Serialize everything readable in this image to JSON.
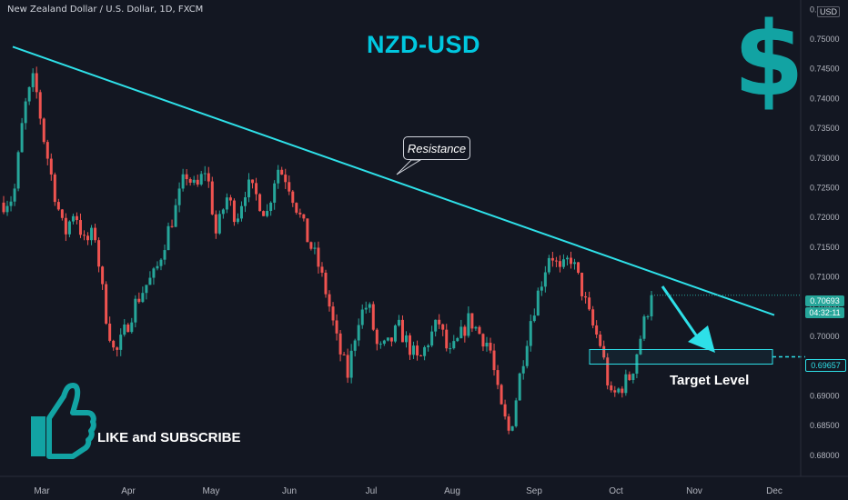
{
  "header": {
    "symbol_line": "New Zealand Dollar / U.S. Dollar, 1D, FXCM",
    "currency_badge": "USD"
  },
  "title": "NZD-USD",
  "dollar_glyph": "$",
  "annotations": {
    "resistance_label": "Resistance",
    "target_label": "Target Level",
    "cta_label": "LIKE and SUBSCRIBE"
  },
  "price_tags": {
    "current_price": "0.70693",
    "countdown": "04:32:11",
    "target_price": "0.69657"
  },
  "icons": [
    "thumbs-up-icon",
    "dollar-icon",
    "arrow-down-icon"
  ],
  "colors": {
    "background": "#131722",
    "bull": "#26a69a",
    "bear": "#ef5350",
    "trendline": "#2ee0e8",
    "title": "#00c8e0",
    "dollar": "#12a3a3"
  },
  "chart_data": {
    "type": "candlestick",
    "title": "NZD-USD",
    "timeframe": "1D",
    "x_ticks": [
      "Mar",
      "Apr",
      "May",
      "Jun",
      "Jul",
      "Aug",
      "Sep",
      "Oct",
      "Nov",
      "Dec"
    ],
    "y_ticks": [
      "0.75500",
      "0.75000",
      "0.74500",
      "0.74000",
      "0.73500",
      "0.73000",
      "0.72500",
      "0.72000",
      "0.71500",
      "0.71000",
      "0.70500",
      "0.70000",
      "0.69500",
      "0.69000",
      "0.68500",
      "0.68000"
    ],
    "ylim": [
      0.678,
      0.7555
    ],
    "resistance_line": {
      "start": [
        "Feb 20",
        0.7487
      ],
      "end": [
        "Nov 28",
        0.7036
      ]
    },
    "target_level": 0.69657,
    "last_price": 0.70693,
    "price_path_closes": [
      0.7225,
      0.7235,
      0.738,
      0.7435,
      0.733,
      0.7245,
      0.717,
      0.7215,
      0.7155,
      0.7175,
      0.7045,
      0.6965,
      0.701,
      0.7055,
      0.7085,
      0.7105,
      0.7165,
      0.7215,
      0.7275,
      0.7245,
      0.7285,
      0.717,
      0.7235,
      0.72,
      0.7255,
      0.7235,
      0.7205,
      0.7285,
      0.7265,
      0.7215,
      0.7165,
      0.7125,
      0.7065,
      0.6985,
      0.6935,
      0.703,
      0.7055,
      0.6975,
      0.6985,
      0.7015,
      0.6985,
      0.6955,
      0.6995,
      0.7025,
      0.6965,
      0.6995,
      0.703,
      0.7005,
      0.6985,
      0.6885,
      0.6835,
      0.6935,
      0.7025,
      0.7085,
      0.7145,
      0.7105,
      0.7135,
      0.7085,
      0.7025,
      0.6985,
      0.6895,
      0.6915,
      0.6935,
      0.7005,
      0.7069
    ],
    "path_ranges": [
      5,
      3,
      3,
      4,
      5,
      5,
      4,
      4,
      5,
      5,
      5,
      4,
      3,
      4,
      4,
      4,
      4,
      4,
      4,
      3,
      4,
      4,
      4,
      4,
      4,
      4,
      4,
      4,
      4,
      4,
      4,
      4,
      4,
      4,
      4,
      4,
      4,
      4,
      4,
      4,
      4,
      4,
      4,
      4,
      4,
      4,
      4,
      4,
      4,
      4,
      3,
      3,
      4,
      4,
      4,
      4,
      4,
      4,
      4,
      4,
      3,
      3,
      3,
      3,
      3
    ]
  }
}
